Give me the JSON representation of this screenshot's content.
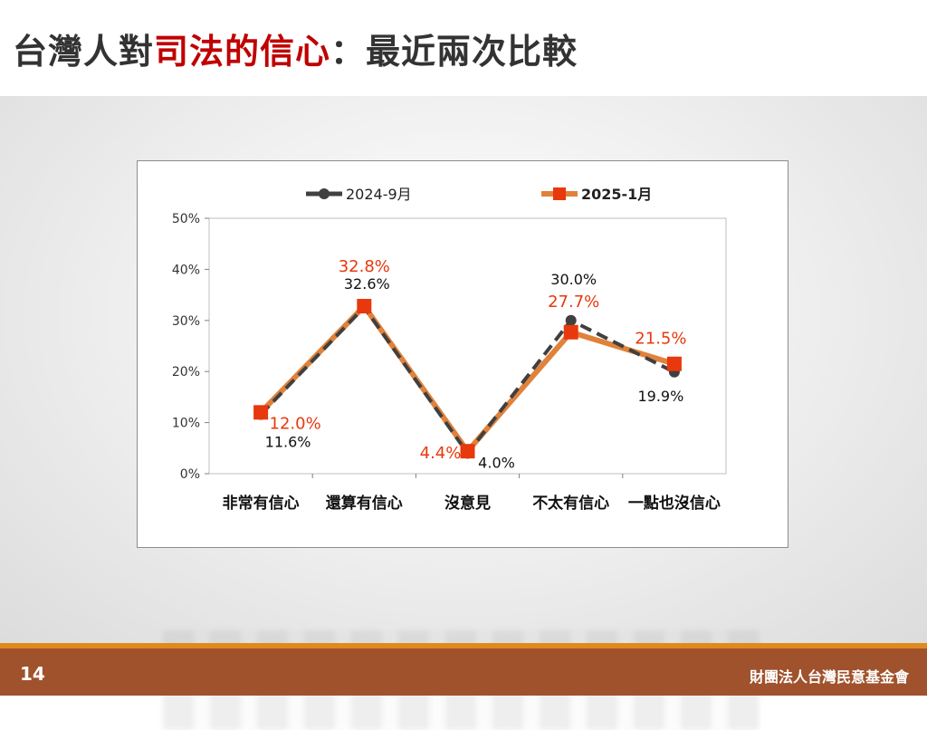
{
  "title": {
    "part1": "台灣人對",
    "highlight": "司法的信心",
    "part2": "：最近兩次比較"
  },
  "footer": {
    "page_number": "14",
    "organization": "財團法人台灣民意基金會"
  },
  "chart_data": {
    "type": "line",
    "categories": [
      "非常有信心",
      "還算有信心",
      "沒意見",
      "不太有信心",
      "一點也沒信心"
    ],
    "series": [
      {
        "name": "2024-9月",
        "values": [
          11.6,
          32.6,
          4.0,
          30.0,
          19.9
        ],
        "labels": [
          "11.6%",
          "32.6%",
          "4.0%",
          "30.0%",
          "19.9%"
        ],
        "color": "#404040",
        "line_style": "dashed",
        "marker": "circle"
      },
      {
        "name": "2025-1月",
        "values": [
          12.0,
          32.8,
          4.4,
          27.7,
          21.5
        ],
        "labels": [
          "12.0%",
          "32.8%",
          "4.4%",
          "27.7%",
          "21.5%"
        ],
        "color": "#e0823a",
        "marker_color": "#e8380d",
        "label_color": "#e8380d",
        "line_style": "solid",
        "marker": "square"
      }
    ],
    "ylim": [
      0,
      50
    ],
    "yticks": [
      "0%",
      "10%",
      "20%",
      "30%",
      "40%",
      "50%"
    ],
    "ytick_values": [
      0,
      10,
      20,
      30,
      40,
      50
    ],
    "grid": false,
    "legend_position": "top"
  }
}
